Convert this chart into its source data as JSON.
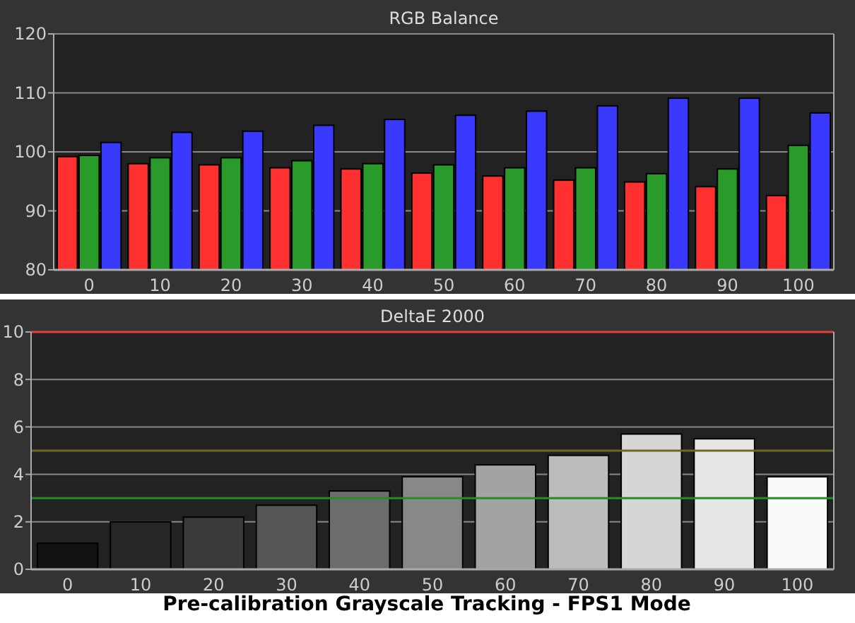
{
  "chart_data": [
    {
      "type": "bar",
      "title": "RGB Balance",
      "categories": [
        "0",
        "10",
        "20",
        "30",
        "40",
        "50",
        "60",
        "70",
        "80",
        "90",
        "100"
      ],
      "series": [
        {
          "color": "#ff3030",
          "values": [
            99.2,
            98,
            97.8,
            97.3,
            97.1,
            96.4,
            95.9,
            95.2,
            94.9,
            94.1,
            92.6
          ]
        },
        {
          "color": "#2a9a2a",
          "values": [
            99.4,
            99,
            99,
            98.5,
            98,
            97.8,
            97.3,
            97.3,
            96.3,
            97.1,
            101.1
          ]
        },
        {
          "color": "#3a3aff",
          "values": [
            101.6,
            103.3,
            103.5,
            104.5,
            105.5,
            106.2,
            106.9,
            107.8,
            109.1,
            109.1,
            106.6
          ]
        }
      ],
      "ylim": [
        80,
        120
      ],
      "yticks": [
        80,
        90,
        100,
        110,
        120
      ],
      "grid": "y"
    },
    {
      "type": "bar",
      "title": "DeltaE 2000",
      "categories": [
        "0",
        "10",
        "20",
        "30",
        "40",
        "50",
        "60",
        "70",
        "80",
        "90",
        "100"
      ],
      "values": [
        1.1,
        2.0,
        2.2,
        2.7,
        3.3,
        3.9,
        4.4,
        4.8,
        5.7,
        5.5,
        3.9
      ],
      "colors": [
        "#121212",
        "#262626",
        "#3a3a3a",
        "#555555",
        "#6c6c6c",
        "#888888",
        "#a3a3a3",
        "#bcbcbc",
        "#d6d6d6",
        "#e6e6e6",
        "#fafafa"
      ],
      "ylim": [
        0,
        10
      ],
      "yticks": [
        0,
        2,
        4,
        6,
        8,
        10
      ],
      "grid": "y",
      "ref_lines": [
        {
          "axis": "y",
          "value": 10,
          "color": "#e04040"
        },
        {
          "axis": "y",
          "value": 5,
          "color": "#6a6a20"
        },
        {
          "axis": "y",
          "value": 3,
          "color": "#209020"
        }
      ],
      "annotations": [
        "Pre-calibration Grayscale Tracking - FPS1 Mode"
      ]
    }
  ]
}
